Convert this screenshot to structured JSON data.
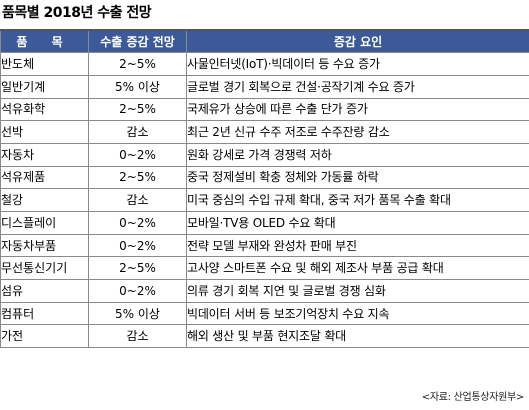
{
  "title": "품목별 2018년 수출 전망",
  "table": {
    "headers": {
      "item": "품 목",
      "change": "수출 증감 전망",
      "reason": "증감 요인"
    },
    "rows": [
      {
        "item": "반도체",
        "change": "2~5%",
        "reason": "사물인터넷(IoT)·빅데이터 등 수요 증가"
      },
      {
        "item": "일반기계",
        "change": "5% 이상",
        "reason": "글로벌 경기 회복으로 건설·공작기계 수요 증가"
      },
      {
        "item": "석유화학",
        "change": "2~5%",
        "reason": "국제유가 상승에 따른 수출 단가 증가"
      },
      {
        "item": "선박",
        "change": "감소",
        "reason": "최근 2년 신규 수주 저조로 수주잔량 감소"
      },
      {
        "item": "자동차",
        "change": "0~2%",
        "reason": "원화 강세로 가격 경쟁력 저하"
      },
      {
        "item": "석유제품",
        "change": "2~5%",
        "reason": "중국 정제설비 확충 정체와 가동률 하락"
      },
      {
        "item": "철강",
        "change": "감소",
        "reason": "미국 중심의 수입 규제 확대, 중국 저가 품목 수출 확대"
      },
      {
        "item": "디스플레이",
        "change": "0~2%",
        "reason": "모바일·TV용 OLED 수요 확대"
      },
      {
        "item": "자동차부품",
        "change": "0~2%",
        "reason": "전략 모델 부재와 완성차 판매 부진"
      },
      {
        "item": "무선통신기기",
        "change": "2~5%",
        "reason": "고사양 스마트폰 수요 및 해외 제조사 부품 공급 확대"
      },
      {
        "item": "섬유",
        "change": "0~2%",
        "reason": "의류 경기 회복 지연 및 글로벌 경쟁 심화"
      },
      {
        "item": "컴퓨터",
        "change": "5% 이상",
        "reason": "빅데이터 서버 등 보조기억장치 수요 지속"
      },
      {
        "item": "가전",
        "change": "감소",
        "reason": "해외 생산 및 부품 현지조달 확대"
      }
    ]
  },
  "source": "<자료: 산업통상자원부>",
  "colors": {
    "header_bg": "#3c5a9a",
    "header_text": "#ffffff",
    "border": "#8a8a8a"
  }
}
